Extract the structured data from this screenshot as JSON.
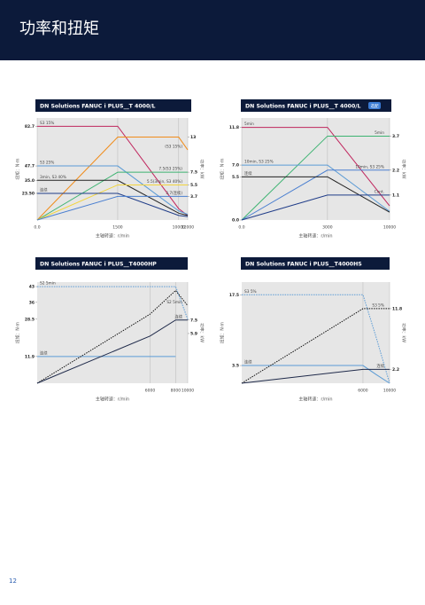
{
  "header": {
    "title": "功率和扭矩"
  },
  "page_number": "12",
  "chart_data": [
    {
      "type": "line",
      "title": "DN Solutions FANUC i PLUS__T 4000/L",
      "y_label": "扭矩：N·m",
      "y2_label": "功率：kW",
      "x_label": "主轴转速：r/min",
      "x": [
        0,
        1500,
        10000,
        12000
      ],
      "xlim": [
        0,
        12000
      ],
      "xticks": [
        {
          "value": 0,
          "label": "0.0"
        },
        1500,
        10000,
        12000
      ],
      "ylim": [
        0,
        90
      ],
      "yticks": [
        82.7,
        47.7,
        {
          "value": 35,
          "label": "35.0"
        },
        {
          "value": 23.5,
          "label": "23.50"
        }
      ],
      "y2lim": [
        0,
        16
      ],
      "y2ticks": [
        13,
        7.5,
        5.5,
        3.7
      ],
      "grid": true,
      "series": [
        {
          "name": "S3 15%",
          "color": "#c0265e",
          "values": [
            82.7,
            82.7,
            10,
            4
          ]
        },
        {
          "name": "(S3 15%)",
          "color": "#f08c1a",
          "axis": "y2",
          "values": [
            0,
            13,
            13,
            11
          ]
        },
        {
          "name": "S3 25%",
          "color": "#5b9bd5",
          "values": [
            47.7,
            47.7,
            8,
            5
          ]
        },
        {
          "name": "7.5(S3 25%)",
          "color": "#3cb371",
          "axis": "y2",
          "values": [
            0,
            7.5,
            7.5,
            7.5
          ]
        },
        {
          "name": "3min, S3 40%",
          "color": "#222222",
          "values": [
            35,
            35,
            6,
            4
          ]
        },
        {
          "name": "5.5(3min, S3 40%)",
          "color": "#f2d43c",
          "axis": "y2",
          "values": [
            0,
            5.5,
            5.5,
            5.5
          ]
        },
        {
          "name": "连续",
          "color": "#1f3c88",
          "values": [
            23.5,
            23.5,
            4,
            3
          ]
        },
        {
          "name": "3.7(连续)",
          "color": "#4a7fd0",
          "axis": "y2",
          "values": [
            0,
            3.7,
            3.7,
            3.7
          ]
        }
      ]
    },
    {
      "type": "line",
      "title": "DN Solutions FANUC i PLUS__T 4000/L",
      "badge": "选配",
      "y_label": "扭矩：N·m",
      "y2_label": "功率：kW",
      "x_label": "主轴转速：r/min",
      "x": [
        0,
        3000,
        10000
      ],
      "xlim": [
        0,
        10000
      ],
      "xticks": [
        {
          "value": 0,
          "label": "0.0"
        },
        3000,
        10000
      ],
      "ylim": [
        0,
        13
      ],
      "yticks": [
        11.8,
        {
          "value": 7,
          "label": "7.0"
        },
        5.5,
        {
          "value": 0,
          "label": "0.0"
        }
      ],
      "y2lim": [
        0,
        4.5
      ],
      "y2ticks": [
        3.7,
        2.2,
        1.1
      ],
      "grid": true,
      "series": [
        {
          "name": "5min",
          "color": "#c0265e",
          "values": [
            11.8,
            11.8,
            1.8
          ]
        },
        {
          "name": "5min",
          "color": "#3cb371",
          "axis": "y2",
          "values": [
            0,
            3.7,
            3.7
          ]
        },
        {
          "name": "10min, S3 25%",
          "color": "#5b9bd5",
          "values": [
            7,
            7,
            1.1
          ]
        },
        {
          "name": "10min, S3 25%",
          "color": "#4a7fd0",
          "axis": "y2",
          "values": [
            0,
            2.2,
            2.2
          ]
        },
        {
          "name": "连续",
          "color": "#222222",
          "values": [
            5.5,
            5.5,
            1
          ]
        },
        {
          "name": "Cont.",
          "color": "#1f3c88",
          "axis": "y2",
          "values": [
            0,
            1.1,
            1.1
          ]
        }
      ]
    },
    {
      "type": "line",
      "title": "DN Solutions FANUC i PLUS__T4000HP",
      "y_label": "扭矩：N·m",
      "y2_label": "功率：kW",
      "x_label": "主轴转速：r/min",
      "x": [
        0,
        6000,
        8000,
        10000
      ],
      "xlim": [
        0,
        10000
      ],
      "xticks": [
        6000,
        8000,
        10000
      ],
      "ylim": [
        0,
        45
      ],
      "yticks": [
        43,
        36,
        28.5,
        11.9
      ],
      "y2lim": [
        0,
        12
      ],
      "y2ticks": [
        7.5,
        5.9
      ],
      "grid": true,
      "series": [
        {
          "name": "S2 5min",
          "color": "#5b9bd5",
          "dash": true,
          "values": [
            43,
            43,
            43,
            28.5
          ]
        },
        {
          "name": "连续",
          "color": "#5b9bd5",
          "values": [
            11.9,
            11.9,
            11.9,
            null
          ]
        },
        {
          "name": "S2 5min",
          "color": "#111111",
          "dash": true,
          "axis": "y2",
          "values": [
            0,
            8.2,
            11,
            9.2
          ]
        },
        {
          "name": "连续",
          "color": "#1f2a4a",
          "axis": "y2",
          "values": [
            0,
            5.6,
            7.5,
            7.5
          ]
        }
      ]
    },
    {
      "type": "line",
      "title": "DN Solutions FANUC i PLUS__T4000HS",
      "y_label": "扭矩：N·m",
      "y2_label": "功率：kW",
      "x_label": "主轴转速：r/min",
      "x": [
        0,
        6000,
        8000,
        10000
      ],
      "xlim": [
        0,
        10000
      ],
      "xticks": [
        6000,
        10000
      ],
      "ylim": [
        0,
        20
      ],
      "yticks": [
        17.5,
        3.5
      ],
      "y2lim": [
        0,
        16
      ],
      "y2ticks": [
        11.8,
        2.2
      ],
      "grid": true,
      "series": [
        {
          "name": "S3 5%",
          "color": "#5b9bd5",
          "dash": true,
          "values": [
            17.5,
            17.5,
            9,
            0
          ]
        },
        {
          "name": "连续",
          "color": "#5b9bd5",
          "values": [
            3.5,
            3.5,
            1.7,
            0
          ]
        },
        {
          "name": "S3 5%",
          "color": "#111111",
          "dash": true,
          "axis": "y2",
          "values": [
            0,
            11.8,
            11.8,
            11.8
          ]
        },
        {
          "name": "连续",
          "color": "#1f2a4a",
          "axis": "y2",
          "values": [
            0,
            2.2,
            2.2,
            2.2
          ]
        }
      ]
    }
  ]
}
